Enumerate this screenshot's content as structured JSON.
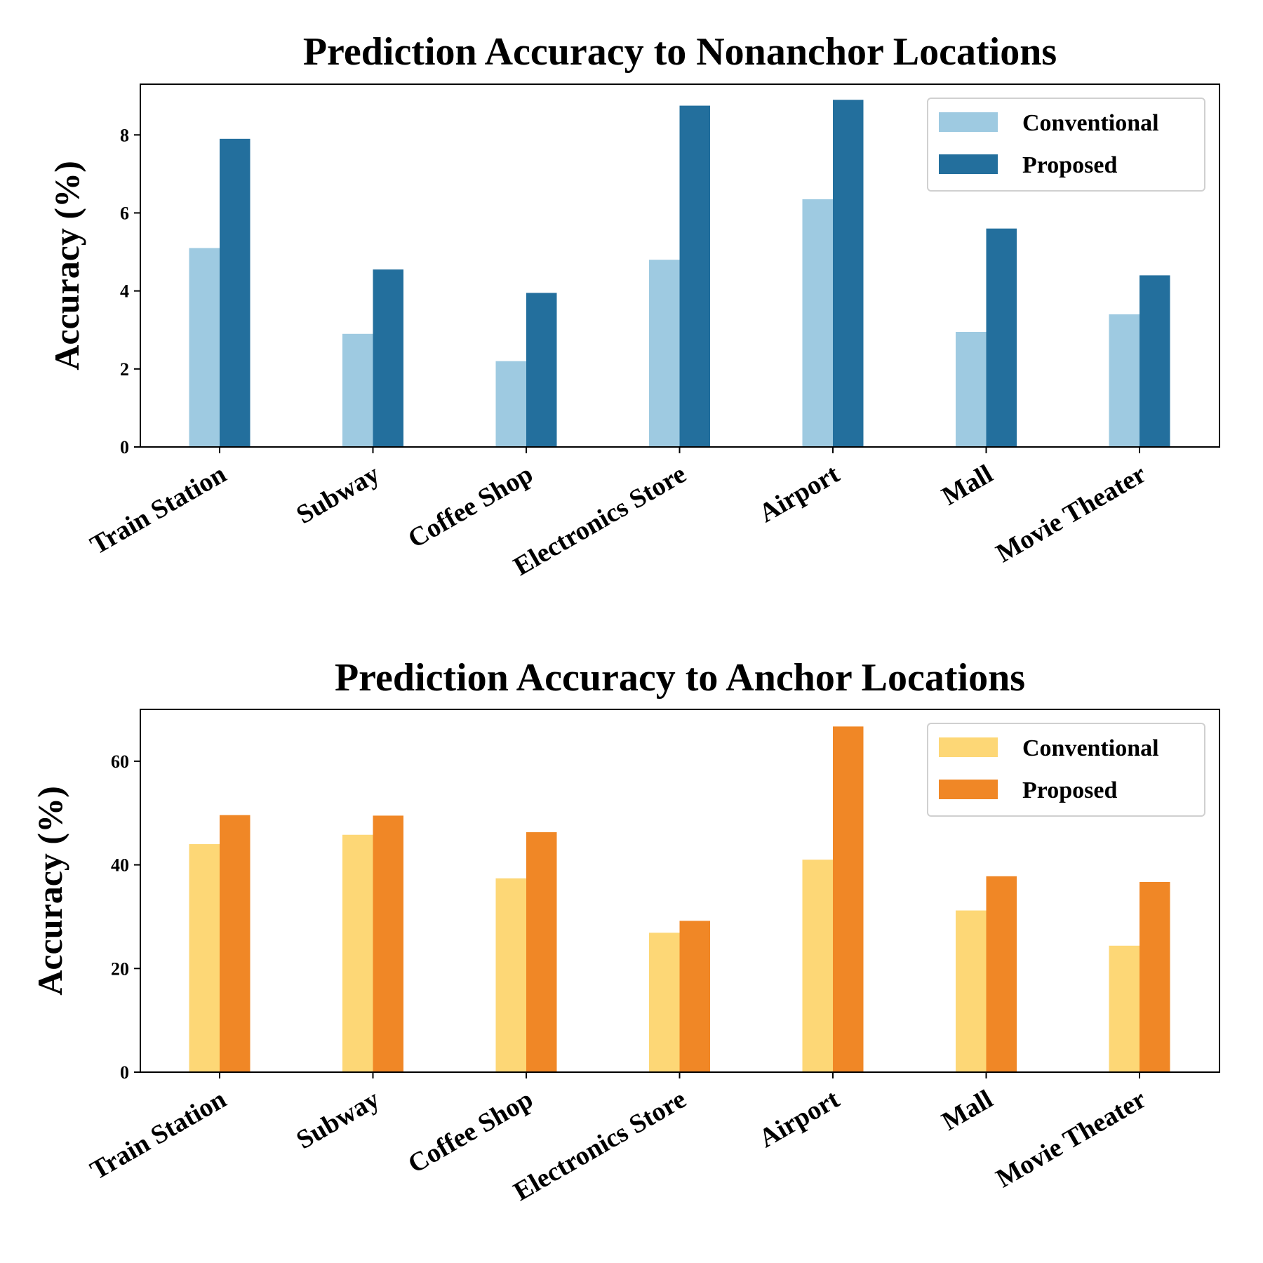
{
  "chart_data": [
    {
      "type": "bar",
      "title": "Prediction Accuracy to Nonanchor Locations",
      "xlabel": "",
      "ylabel": "Accuracy (%)",
      "ylim": [
        0,
        9.3
      ],
      "yticks": [
        0,
        2,
        4,
        6,
        8
      ],
      "grid": false,
      "legend_position": "top-right",
      "categories": [
        "Train Station",
        "Subway",
        "Coffee Shop",
        "Electronics Store",
        "Airport",
        "Mall",
        "Movie Theater"
      ],
      "series": [
        {
          "name": "Conventional",
          "color": "#9ecae1",
          "values": [
            5.1,
            2.9,
            2.2,
            4.8,
            6.35,
            2.95,
            3.4
          ]
        },
        {
          "name": "Proposed",
          "color": "#236f9d",
          "values": [
            7.9,
            4.55,
            3.95,
            8.75,
            8.9,
            5.6,
            4.4
          ]
        }
      ]
    },
    {
      "type": "bar",
      "title": "Prediction Accuracy to Anchor Locations",
      "xlabel": "",
      "ylabel": "Accuracy (%)",
      "ylim": [
        0,
        70
      ],
      "yticks": [
        0,
        20,
        40,
        60
      ],
      "grid": false,
      "legend_position": "top-right",
      "categories": [
        "Train Station",
        "Subway",
        "Coffee Shop",
        "Electronics Store",
        "Airport",
        "Mall",
        "Movie Theater"
      ],
      "series": [
        {
          "name": "Conventional",
          "color": "#fdd776",
          "values": [
            44,
            45.8,
            37.4,
            26.9,
            41,
            31.2,
            24.4
          ]
        },
        {
          "name": "Proposed",
          "color": "#f08726",
          "values": [
            49.6,
            49.5,
            46.3,
            29.2,
            66.7,
            37.8,
            36.7
          ]
        }
      ]
    }
  ]
}
